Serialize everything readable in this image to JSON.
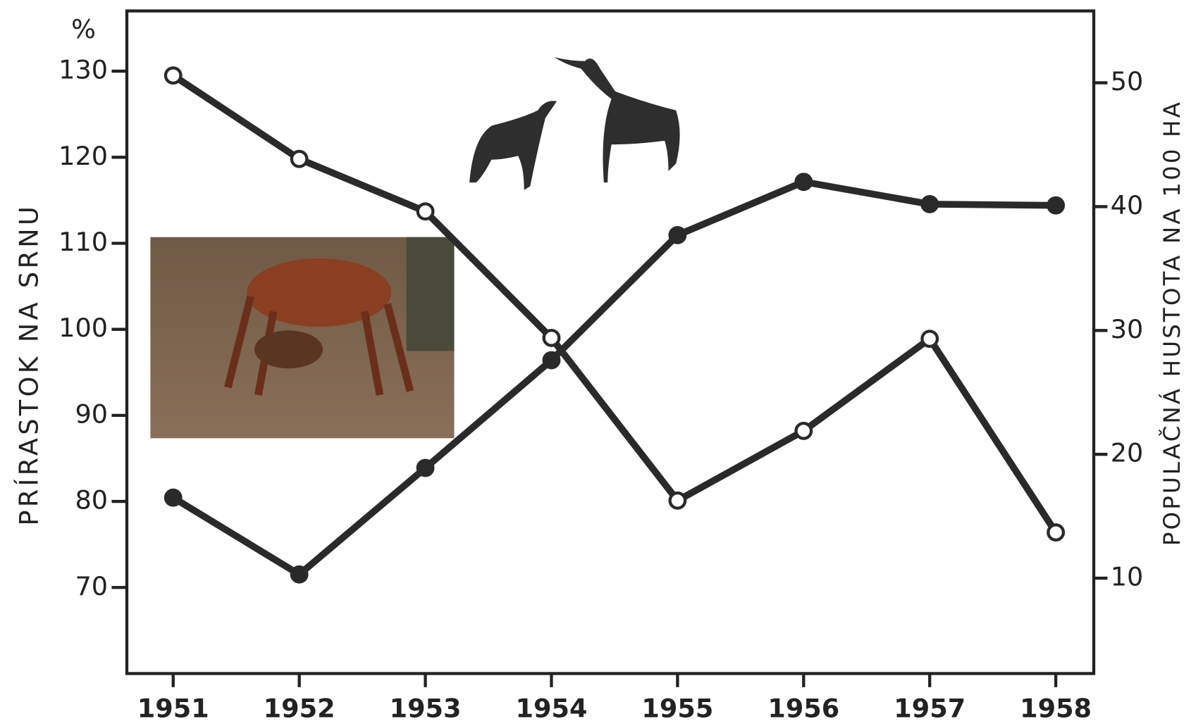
{
  "chart_data": {
    "type": "line",
    "unit": "%",
    "y_label": "PRÍRASTOK NA SRNU",
    "y2_label": "POPULAČNÁ HUSTOTA NA 100 HA",
    "categories": [
      "1951",
      "1952",
      "1953",
      "1954",
      "1955",
      "1956",
      "1957",
      "1958"
    ],
    "ylim": [
      60,
      137
    ],
    "yticks": [
      70,
      80,
      90,
      100,
      110,
      120,
      130
    ],
    "y2lim": [
      2.3,
      55.8
    ],
    "y2ticks": [
      10,
      20,
      30,
      40,
      50
    ],
    "series": [
      {
        "color": "#2a2a2a",
        "marker": "open",
        "values": [
          129.5,
          119.8,
          113.7,
          99.0,
          80.1,
          88.2,
          98.9,
          76.4
        ]
      },
      {
        "color": "#2a2a2a",
        "marker": "filled",
        "axis": "y2",
        "values": [
          16.5,
          10.3,
          18.9,
          27.6,
          37.7,
          42.0,
          40.2,
          40.1
        ]
      }
    ]
  }
}
